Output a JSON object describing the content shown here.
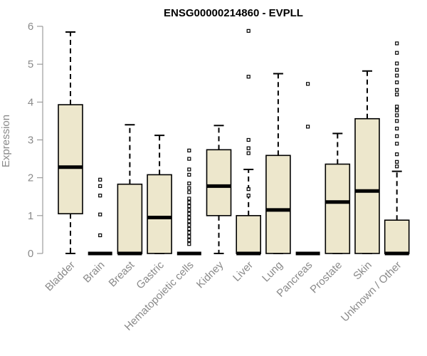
{
  "chart_data": {
    "type": "boxplot",
    "title": "ENSG00000214860 - EVPLL",
    "xlabel": "",
    "ylabel": "Expression",
    "ylim": [
      0,
      6
    ],
    "yticks": [
      0,
      1,
      2,
      3,
      4,
      5,
      6
    ],
    "box_fill": "#ede7cc",
    "box_stroke": "#000000",
    "tick_color": "#8a8a8a",
    "categories": [
      "Bladder",
      "Brain",
      "Breast",
      "Gastric",
      "Hematopoietic cells",
      "Kidney",
      "Liver",
      "Lung",
      "Pancreas",
      "Prostate",
      "Skin",
      "Unknown / Other"
    ],
    "boxes": [
      {
        "label": "Bladder",
        "whisker_low": 0,
        "q1": 1.05,
        "median": 2.28,
        "q3": 3.93,
        "whisker_high": 5.85,
        "outliers": []
      },
      {
        "label": "Brain",
        "whisker_low": 0,
        "q1": 0,
        "median": 0,
        "q3": 0,
        "whisker_high": 0,
        "outliers": [
          0.48,
          1.03,
          1.53,
          1.78,
          1.95
        ]
      },
      {
        "label": "Breast",
        "whisker_low": 0,
        "q1": 0,
        "median": 0,
        "q3": 1.83,
        "whisker_high": 3.4,
        "outliers": []
      },
      {
        "label": "Gastric",
        "whisker_low": 0,
        "q1": 0,
        "median": 0.95,
        "q3": 2.08,
        "whisker_high": 3.12,
        "outliers": []
      },
      {
        "label": "Hematopoietic cells",
        "whisker_low": 0,
        "q1": 0,
        "median": 0,
        "q3": 0,
        "whisker_high": 0,
        "outliers": [
          0.25,
          0.35,
          0.45,
          0.55,
          0.65,
          0.75,
          0.85,
          0.95,
          1.05,
          1.15,
          1.25,
          1.35,
          1.45,
          1.62,
          1.73,
          1.85,
          2.08,
          2.22,
          2.5,
          2.72
        ]
      },
      {
        "label": "Kidney",
        "whisker_low": 0,
        "q1": 1.0,
        "median": 1.78,
        "q3": 2.74,
        "whisker_high": 3.38,
        "outliers": []
      },
      {
        "label": "Liver",
        "whisker_low": 0,
        "q1": 0,
        "median": 0,
        "q3": 1.0,
        "whisker_high": 2.22,
        "outliers": [
          1.53,
          1.7,
          2.65,
          2.78,
          3.0,
          4.67,
          5.88
        ]
      },
      {
        "label": "Lung",
        "whisker_low": 0,
        "q1": 0,
        "median": 1.15,
        "q3": 2.59,
        "whisker_high": 4.75,
        "outliers": []
      },
      {
        "label": "Pancreas",
        "whisker_low": 0,
        "q1": 0,
        "median": 0,
        "q3": 0,
        "whisker_high": 0,
        "outliers": [
          3.35,
          4.48
        ]
      },
      {
        "label": "Prostate",
        "whisker_low": 0,
        "q1": 0,
        "median": 1.36,
        "q3": 2.36,
        "whisker_high": 3.17,
        "outliers": []
      },
      {
        "label": "Skin",
        "whisker_low": 0,
        "q1": 0,
        "median": 1.65,
        "q3": 3.56,
        "whisker_high": 4.82,
        "outliers": []
      },
      {
        "label": "Unknown / Other",
        "whisker_low": 0,
        "q1": 0,
        "median": 0,
        "q3": 0.88,
        "whisker_high": 2.17,
        "outliers": [
          2.3,
          2.42,
          2.62,
          2.9,
          3.1,
          3.3,
          3.5,
          3.65,
          3.78,
          3.88,
          4.2,
          4.32,
          4.52,
          4.7,
          4.85,
          5.02,
          5.3,
          5.55
        ]
      }
    ]
  }
}
